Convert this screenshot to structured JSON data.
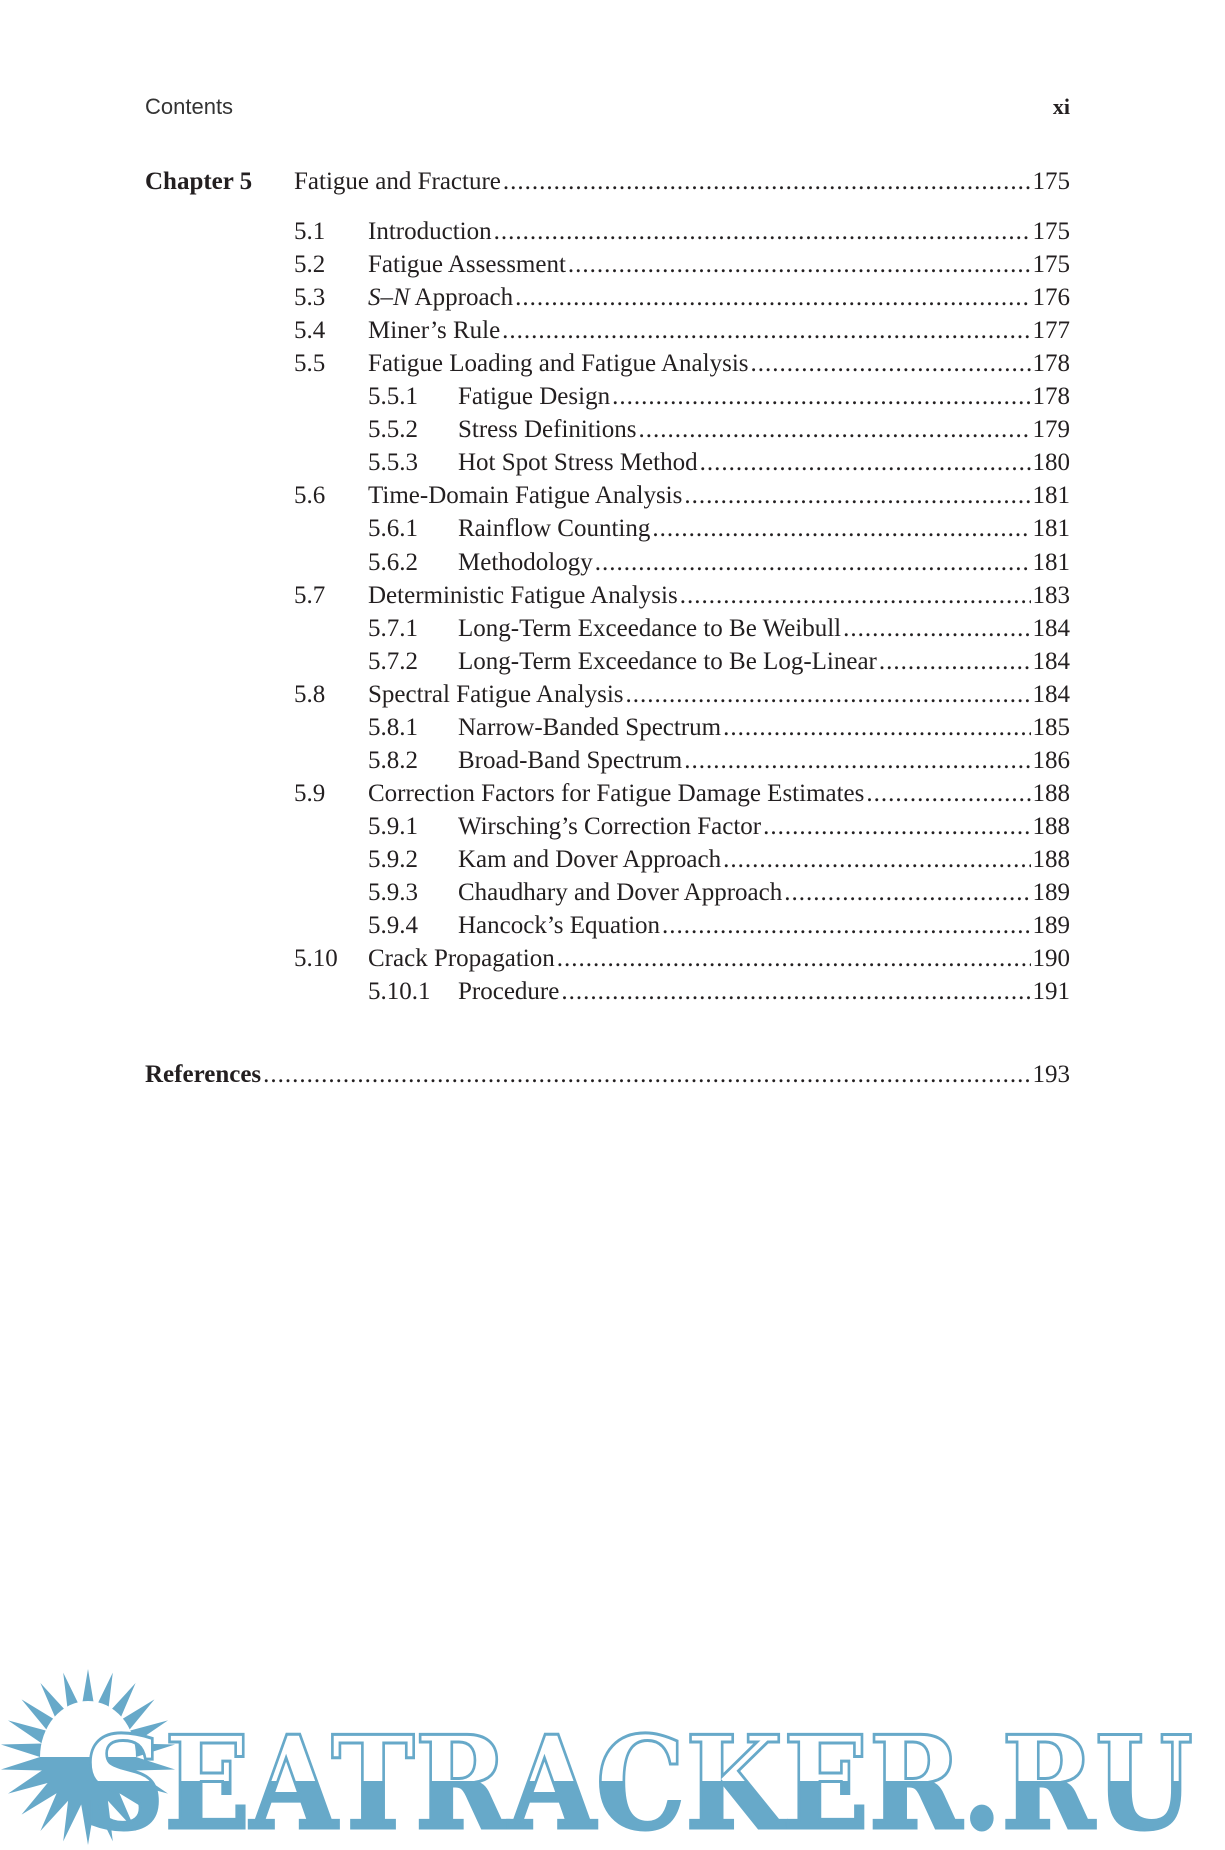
{
  "header": {
    "left": "Contents",
    "right": "xi"
  },
  "chapter": {
    "label": "Chapter 5",
    "title": "Fatigue and Fracture",
    "page": "175"
  },
  "entries": [
    {
      "num": "5.1",
      "title": "Introduction",
      "page": "175",
      "level": 1
    },
    {
      "num": "5.2",
      "title": "Fatigue Assessment",
      "page": "175",
      "level": 1
    },
    {
      "num": "5.3",
      "title": "S–N Approach",
      "page": "176",
      "level": 1
    },
    {
      "num": "5.4",
      "title": "Miner’s Rule",
      "page": "177",
      "level": 1
    },
    {
      "num": "5.5",
      "title": "Fatigue Loading and Fatigue Analysis",
      "page": "178",
      "level": 1
    },
    {
      "num": "5.5.1",
      "title": "Fatigue Design",
      "page": "178",
      "level": 2
    },
    {
      "num": "5.5.2",
      "title": "Stress Definitions",
      "page": "179",
      "level": 2
    },
    {
      "num": "5.5.3",
      "title": "Hot Spot Stress Method",
      "page": "180",
      "level": 2
    },
    {
      "num": "5.6",
      "title": "Time-Domain Fatigue Analysis",
      "page": "181",
      "level": 1
    },
    {
      "num": "5.6.1",
      "title": "Rainflow Counting",
      "page": "181",
      "level": 2
    },
    {
      "num": "5.6.2",
      "title": "Methodology",
      "page": "181",
      "level": 2
    },
    {
      "num": "5.7",
      "title": "Deterministic Fatigue Analysis",
      "page": "183",
      "level": 1
    },
    {
      "num": "5.7.1",
      "title": "Long-Term Exceedance to Be Weibull",
      "page": "184",
      "level": 2
    },
    {
      "num": "5.7.2",
      "title": "Long-Term Exceedance to Be Log-Linear",
      "page": "184",
      "level": 2
    },
    {
      "num": "5.8",
      "title": "Spectral Fatigue Analysis",
      "page": "184",
      "level": 1
    },
    {
      "num": "5.8.1",
      "title": "Narrow-Banded Spectrum",
      "page": "185",
      "level": 2
    },
    {
      "num": "5.8.2",
      "title": "Broad-Band Spectrum",
      "page": "186",
      "level": 2
    },
    {
      "num": "5.9",
      "title": "Correction Factors for Fatigue Damage Estimates",
      "page": "188",
      "level": 1
    },
    {
      "num": "5.9.1",
      "title": "Wirsching’s Correction Factor",
      "page": "188",
      "level": 2
    },
    {
      "num": "5.9.2",
      "title": "Kam and Dover Approach",
      "page": "188",
      "level": 2
    },
    {
      "num": "5.9.3",
      "title": "Chaudhary and Dover Approach",
      "page": "189",
      "level": 2
    },
    {
      "num": "5.9.4",
      "title": "Hancock’s Equation",
      "page": "189",
      "level": 2
    },
    {
      "num": "5.10",
      "title": "Crack Propagation",
      "page": "190",
      "level": 1
    },
    {
      "num": "5.10.1",
      "title": "Procedure",
      "page": "191",
      "level": 2
    }
  ],
  "references": {
    "title": "References",
    "page": "193"
  },
  "watermark": {
    "text": "SEATRACKER.RU",
    "color": "#67a9c9"
  }
}
